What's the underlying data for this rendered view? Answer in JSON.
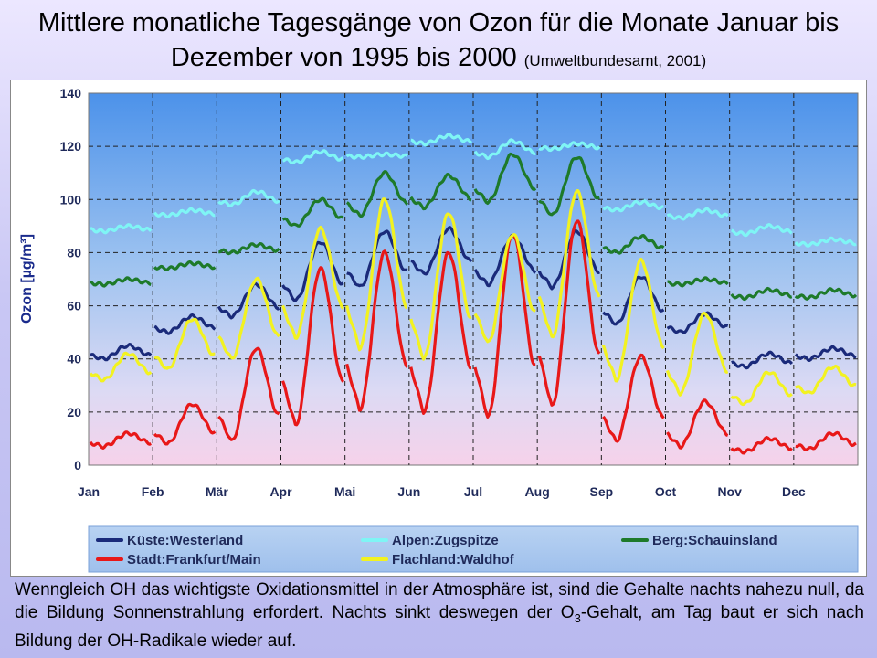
{
  "title": {
    "main": "Mittlere monatliche Tagesgänge von Ozon für die Monate Januar bis Dezember von 1995 bis 2000",
    "citation": "(Umweltbundesamt, 2001)"
  },
  "caption": {
    "part1": "Wenngleich OH das wichtigste Oxidationsmittel in der Atmosphäre ist, sind die Gehalte nachts nahezu null, da die Bildung Sonnenstrahlung erfordert. Nachts sinkt deswegen der O",
    "sub": "3",
    "part2": "-Gehalt, am Tag baut er sich nach Bildung der OH-Radikale wieder auf."
  },
  "chart_data": {
    "type": "line",
    "title": "",
    "ylabel": "Ozon [µg/m³]",
    "xlabel": "",
    "ylim": [
      0,
      140
    ],
    "yticks": [
      0,
      20,
      40,
      60,
      80,
      100,
      120,
      140
    ],
    "categories": [
      "Jan",
      "Feb",
      "Mär",
      "Apr",
      "Mai",
      "Jun",
      "Jul",
      "Aug",
      "Sep",
      "Oct",
      "Nov",
      "Dec"
    ],
    "grid": true,
    "legend_position": "bottom",
    "series": [
      {
        "name": "Küste:Westerland",
        "color": "#1a2a7a",
        "night": [
          40,
          50,
          56,
          62,
          67,
          72,
          68,
          67,
          53,
          50,
          37,
          40
        ],
        "peak": [
          45,
          56,
          68,
          84,
          88,
          89,
          86,
          88,
          71,
          57,
          42,
          44
        ]
      },
      {
        "name": "Alpen:Zugspitze",
        "color": "#7ff5f5",
        "night": [
          88,
          94,
          98,
          114,
          116,
          121,
          116,
          119,
          96,
          93,
          87,
          83
        ],
        "peak": [
          90,
          96,
          103,
          118,
          117,
          124,
          122,
          121,
          99,
          96,
          90,
          85
        ]
      },
      {
        "name": "Berg:Schauinsland",
        "color": "#1e7a2a",
        "night": [
          68,
          74,
          80,
          90,
          94,
          97,
          99,
          94,
          80,
          68,
          63,
          63
        ],
        "peak": [
          70,
          76,
          83,
          100,
          110,
          109,
          117,
          116,
          86,
          70,
          66,
          66
        ]
      },
      {
        "name": "Stadt:Frankfurt/Main",
        "color": "#e81818",
        "night": [
          7,
          8,
          9,
          15,
          21,
          20,
          18,
          22,
          9,
          7,
          5,
          6
        ],
        "peak": [
          12,
          23,
          44,
          74,
          80,
          80,
          87,
          92,
          41,
          24,
          10,
          12
        ]
      },
      {
        "name": "Flachland:Waldhof",
        "color": "#f2f220",
        "night": [
          32,
          36,
          40,
          48,
          44,
          40,
          46,
          48,
          32,
          27,
          23,
          27
        ],
        "peak": [
          42,
          55,
          70,
          89,
          100,
          95,
          87,
          103,
          77,
          57,
          35,
          37
        ]
      }
    ]
  }
}
